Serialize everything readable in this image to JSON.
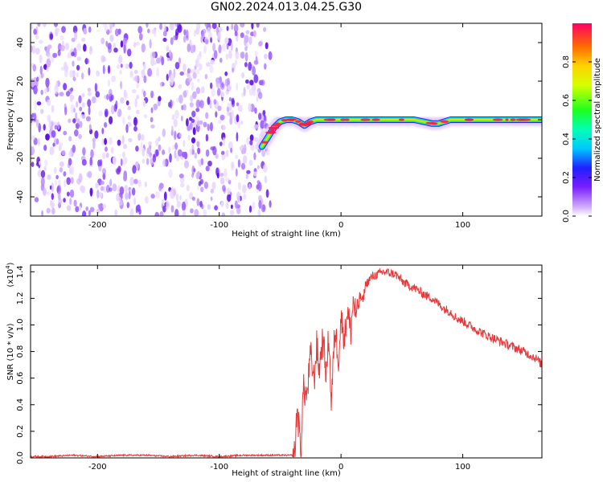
{
  "title": "GN02.2024.013.04.25.G30",
  "chart_data": [
    {
      "type": "heatmap",
      "title": "",
      "xlabel": "Height of straight line (km)",
      "ylabel": "Frequency (Hz)",
      "xlim": [
        -255,
        165
      ],
      "ylim": [
        -50,
        50
      ],
      "xticks": [
        -200,
        -100,
        0,
        100
      ],
      "xtick_labels": [
        "-200",
        "-100",
        "0",
        "100"
      ],
      "yticks": [
        -40,
        -20,
        0,
        20,
        40
      ],
      "ytick_labels": [
        "-40",
        "-20",
        "0",
        "20",
        "40"
      ],
      "noise_region_x": [
        -255,
        -58
      ],
      "track": {
        "name": "",
        "x": [
          -65,
          -60,
          -55,
          -50,
          -45,
          -40,
          -35,
          -30,
          -25,
          -20,
          -10,
          0,
          20,
          40,
          60,
          75,
          80,
          90,
          100,
          120,
          140,
          165
        ],
        "y": [
          -14,
          -9,
          -4,
          -1,
          0,
          0,
          -1,
          -3,
          -1,
          0,
          0,
          0,
          0,
          0,
          0,
          -2,
          -2,
          0,
          0,
          0,
          0,
          0
        ]
      },
      "colorbar": {
        "label": "Normalized spectral amplitude",
        "range": [
          0.0,
          1.0
        ],
        "ticks": [
          0.0,
          0.2,
          0.4,
          0.6,
          0.8
        ],
        "tick_labels": [
          "0.0",
          "0.2",
          "0.4",
          "0.6",
          "0.8"
        ]
      }
    },
    {
      "type": "line",
      "title": "",
      "xlabel": "Height of straight line (km)",
      "ylabel": "SNR (10 * v/v)",
      "yscale_label_prefix": "(x10",
      "yscale_label_exp": "4",
      "yscale_label_suffix": ")",
      "xlim": [
        -255,
        165
      ],
      "ylim": [
        0,
        1.45
      ],
      "xticks": [
        -200,
        -100,
        0,
        100
      ],
      "xtick_labels": [
        "-200",
        "-100",
        "0",
        "100"
      ],
      "yticks": [
        0.0,
        0.2,
        0.4,
        0.6,
        0.8,
        1.0,
        1.2,
        1.4
      ],
      "ytick_labels": [
        "0.0",
        "0.2",
        "0.4",
        "0.6",
        "0.8",
        "1.0",
        "1.2",
        "1.4"
      ],
      "series": [
        {
          "name": "",
          "color": "#e8383a",
          "x": [
            -255,
            -240,
            -220,
            -200,
            -180,
            -160,
            -140,
            -120,
            -100,
            -80,
            -60,
            -45,
            -38,
            -36,
            -33,
            -31,
            -28,
            -25,
            -22,
            -20,
            -18,
            -15,
            -12,
            -10,
            -8,
            -5,
            -2,
            0,
            3,
            5,
            8,
            10,
            13,
            15,
            18,
            20,
            25,
            30,
            35,
            40,
            45,
            50,
            55,
            60,
            65,
            70,
            75,
            80,
            85,
            90,
            95,
            100,
            110,
            120,
            130,
            140,
            150,
            160,
            165
          ],
          "y": [
            0.01,
            0.01,
            0.02,
            0.01,
            0.02,
            0.02,
            0.01,
            0.02,
            0.01,
            0.02,
            0.02,
            0.02,
            0.02,
            0.38,
            0.05,
            0.52,
            0.46,
            0.78,
            0.58,
            0.85,
            0.66,
            0.9,
            0.62,
            0.95,
            0.4,
            0.98,
            0.75,
            1.05,
            0.9,
            1.12,
            0.95,
            1.18,
            1.05,
            1.22,
            1.18,
            1.3,
            1.36,
            1.38,
            1.4,
            1.39,
            1.38,
            1.33,
            1.3,
            1.28,
            1.25,
            1.22,
            1.2,
            1.16,
            1.12,
            1.1,
            1.05,
            1.03,
            0.97,
            0.92,
            0.88,
            0.84,
            0.8,
            0.75,
            0.7
          ]
        }
      ]
    }
  ]
}
